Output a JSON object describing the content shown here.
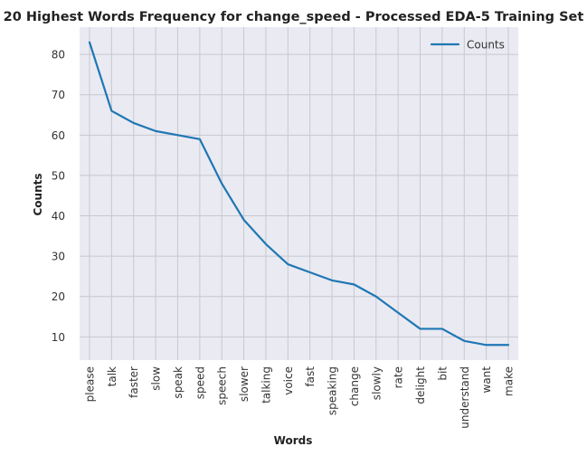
{
  "chart_data": {
    "type": "line",
    "title": "20 Highest Words Frequency for change_speed - Processed EDA-5 Training Set",
    "xlabel": "Words",
    "ylabel": "Counts",
    "categories": [
      "please",
      "talk",
      "faster",
      "slow",
      "speak",
      "speed",
      "speech",
      "slower",
      "talking",
      "voice",
      "fast",
      "speaking",
      "change",
      "slowly",
      "rate",
      "delight",
      "bit",
      "understand",
      "want",
      "make"
    ],
    "series": [
      {
        "name": "Counts",
        "values": [
          83,
          66,
          63,
          61,
          60,
          59,
          48,
          39,
          33,
          28,
          26,
          24,
          23,
          20,
          16,
          12,
          12,
          9,
          8,
          8
        ],
        "color": "#1f77b4"
      }
    ],
    "ylim": [
      4.25,
      86.75
    ],
    "yticks": [
      10,
      20,
      30,
      40,
      50,
      60,
      70,
      80
    ],
    "grid": true,
    "legend_position": "top-right",
    "colors": {
      "background": "#eaeaf2",
      "grid": "#c8c8cf"
    }
  }
}
